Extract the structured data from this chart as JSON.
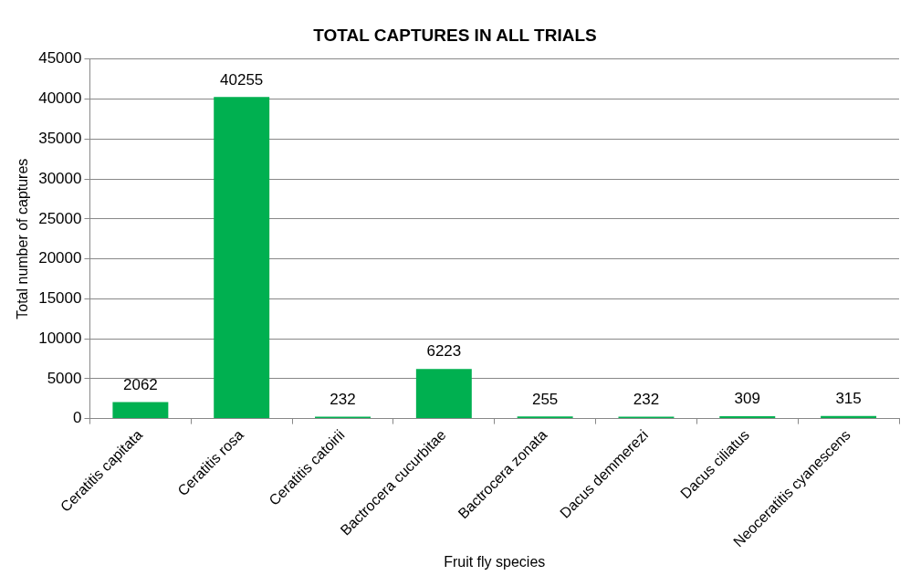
{
  "chart_data": {
    "type": "bar",
    "title": "TOTAL CAPTURES IN ALL TRIALS",
    "xlabel": "Fruit fly species",
    "ylabel": "Total number of captures",
    "categories": [
      "Ceratitis capitata",
      "Ceratitis rosa",
      "Ceratitis catoirii",
      "Bactrocera cucurbitae",
      "Bactrocera zonata",
      "Dacus demmerezi",
      "Dacus ciliatus",
      "Neoceratitis cyanescens"
    ],
    "values": [
      2062,
      40255,
      232,
      6223,
      255,
      232,
      309,
      315
    ],
    "color": "#00b050",
    "ylim": [
      0,
      45000
    ],
    "yticks": [
      0,
      5000,
      10000,
      15000,
      20000,
      25000,
      30000,
      35000,
      40000,
      45000
    ],
    "grid": "y",
    "data_labels": true,
    "legend": false
  }
}
